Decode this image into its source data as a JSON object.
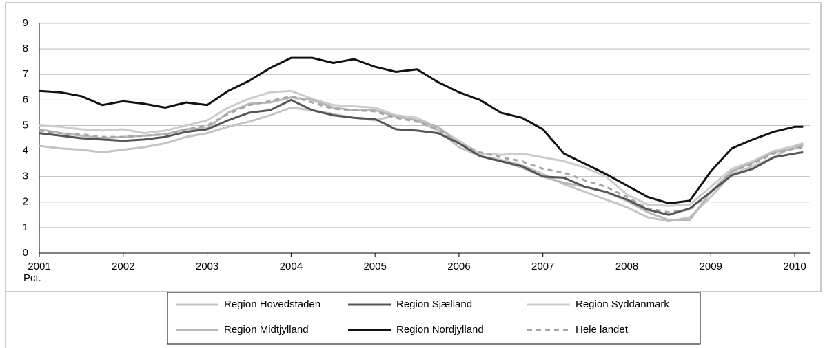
{
  "chart_data": {
    "type": "line",
    "y_label": "Pct.",
    "x": [
      2001,
      2001.25,
      2001.5,
      2001.75,
      2002,
      2002.25,
      2002.5,
      2002.75,
      2003,
      2003.25,
      2003.5,
      2003.75,
      2004,
      2004.25,
      2004.5,
      2004.75,
      2005,
      2005.25,
      2005.5,
      2005.75,
      2006,
      2006.25,
      2006.5,
      2006.75,
      2007,
      2007.25,
      2007.5,
      2007.75,
      2008,
      2008.25,
      2008.5,
      2008.75,
      2009,
      2009.25,
      2009.5,
      2009.75,
      2010,
      2010.1
    ],
    "xlim": [
      2001,
      2010.18
    ],
    "xticks": [
      2001,
      2002,
      2003,
      2004,
      2005,
      2006,
      2007,
      2008,
      2009,
      2010
    ],
    "ylim": [
      0,
      9
    ],
    "yticks": [
      0,
      1,
      2,
      3,
      4,
      5,
      6,
      7,
      8,
      9
    ],
    "grid": true,
    "series": [
      {
        "name": "Region Hovedstaden",
        "color": "#c4c4c4",
        "dash": false,
        "values": [
          4.2,
          4.1,
          4.05,
          3.95,
          4.05,
          4.15,
          4.3,
          4.55,
          4.7,
          4.95,
          5.15,
          5.4,
          5.7,
          5.6,
          5.45,
          5.3,
          5.2,
          5.4,
          5.2,
          4.8,
          4.15,
          3.8,
          3.65,
          3.45,
          3.1,
          2.7,
          2.4,
          2.1,
          1.8,
          1.4,
          1.25,
          1.4,
          2.2,
          3.1,
          3.4,
          3.75,
          4.2,
          4.3
        ]
      },
      {
        "name": "Region Sjælland",
        "color": "#555555",
        "dash": false,
        "values": [
          4.7,
          4.6,
          4.5,
          4.45,
          4.4,
          4.45,
          4.55,
          4.75,
          4.85,
          5.2,
          5.5,
          5.6,
          6.0,
          5.6,
          5.4,
          5.3,
          5.25,
          4.85,
          4.8,
          4.7,
          4.3,
          3.8,
          3.6,
          3.4,
          3.0,
          2.95,
          2.6,
          2.4,
          2.1,
          1.7,
          1.5,
          1.75,
          2.4,
          3.05,
          3.3,
          3.75,
          3.9,
          3.95
        ]
      },
      {
        "name": "Region Syddanmark",
        "color": "#cccccc",
        "dash": false,
        "values": [
          5.0,
          4.95,
          4.85,
          4.8,
          4.85,
          4.7,
          4.8,
          5.0,
          5.2,
          5.7,
          6.05,
          6.3,
          6.35,
          6.05,
          5.8,
          5.75,
          5.7,
          5.4,
          5.3,
          4.9,
          4.4,
          3.9,
          3.85,
          3.9,
          3.75,
          3.6,
          3.35,
          3.0,
          2.3,
          1.9,
          1.85,
          1.9,
          2.6,
          3.3,
          3.6,
          4.0,
          4.2,
          4.2
        ]
      },
      {
        "name": "Region Midtjylland",
        "color": "#b8b8b8",
        "dash": false,
        "values": [
          4.85,
          4.7,
          4.6,
          4.5,
          4.55,
          4.6,
          4.65,
          4.85,
          4.9,
          5.5,
          5.85,
          5.9,
          6.1,
          6.0,
          5.7,
          5.6,
          5.6,
          5.35,
          5.2,
          4.95,
          4.3,
          3.8,
          3.6,
          3.35,
          3.0,
          2.75,
          2.6,
          2.4,
          2.05,
          1.6,
          1.3,
          1.3,
          2.4,
          3.2,
          3.55,
          3.95,
          4.1,
          4.25
        ]
      },
      {
        "name": "Region Nordjylland",
        "color": "#111111",
        "dash": false,
        "values": [
          6.35,
          6.3,
          6.15,
          5.8,
          5.95,
          5.85,
          5.7,
          5.9,
          5.8,
          6.35,
          6.75,
          7.25,
          7.65,
          7.65,
          7.45,
          7.6,
          7.3,
          7.1,
          7.2,
          6.7,
          6.3,
          6.0,
          5.5,
          5.3,
          4.85,
          3.9,
          3.5,
          3.1,
          2.65,
          2.2,
          1.95,
          2.05,
          3.2,
          4.1,
          4.45,
          4.75,
          4.95,
          4.95
        ]
      },
      {
        "name": "Hele landet",
        "color": "#a6a6a6",
        "dash": true,
        "values": [
          4.8,
          4.7,
          4.65,
          4.55,
          4.55,
          4.6,
          4.65,
          4.85,
          5.0,
          5.45,
          5.8,
          5.95,
          6.15,
          5.9,
          5.65,
          5.6,
          5.55,
          5.3,
          5.15,
          4.85,
          4.3,
          3.95,
          3.75,
          3.6,
          3.3,
          3.15,
          2.85,
          2.6,
          2.2,
          1.75,
          1.6,
          1.7,
          2.4,
          3.2,
          3.5,
          3.9,
          4.1,
          4.15
        ]
      }
    ]
  }
}
